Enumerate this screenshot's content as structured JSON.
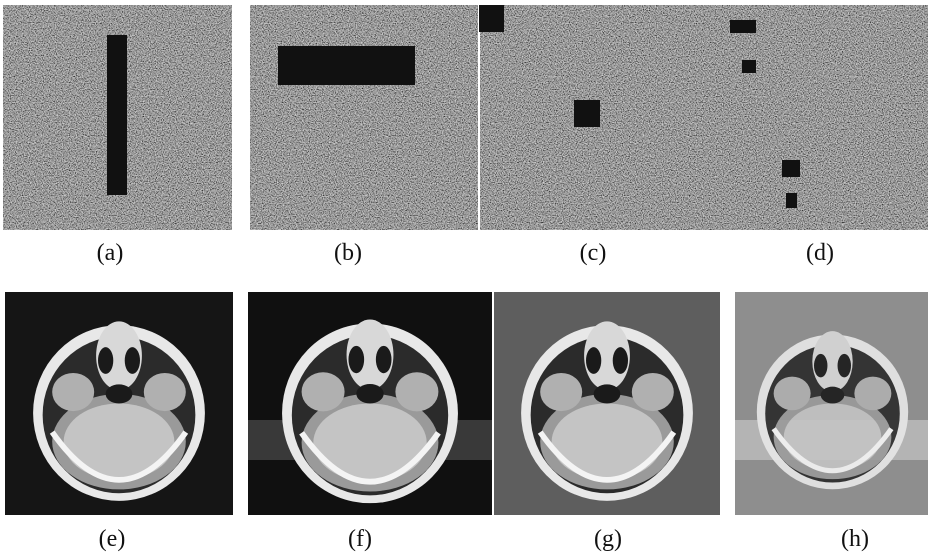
{
  "labels": [
    "(a)",
    "(b)",
    "(c)",
    "(d)",
    "(e)",
    "(f)",
    "(g)",
    "(h)"
  ]
}
